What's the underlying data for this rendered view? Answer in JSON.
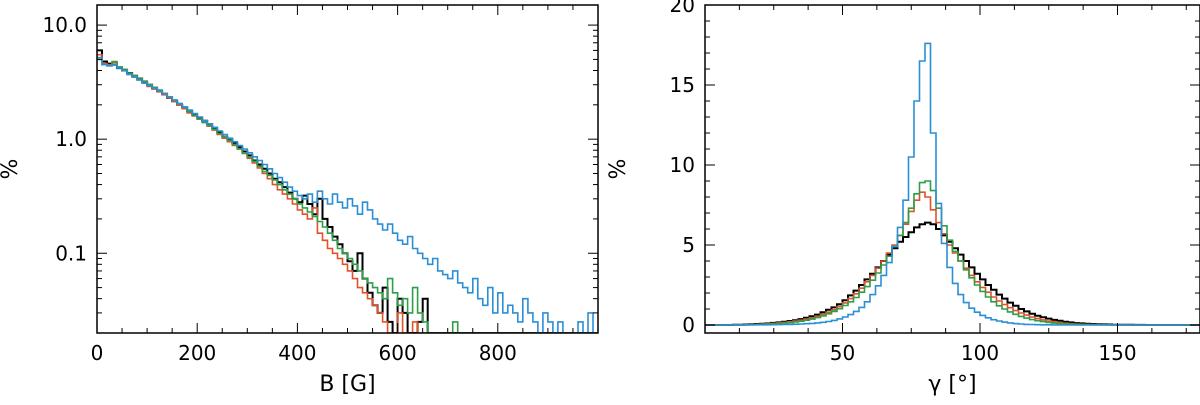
{
  "chart_data": [
    {
      "type": "histogram",
      "xlabel": "B [G]",
      "ylabel": "%",
      "xlim": [
        0,
        1000
      ],
      "ylim": [
        0.02,
        15
      ],
      "yscale": "log",
      "xticks": [
        0,
        200,
        400,
        600,
        800
      ],
      "xtick_labels": [
        "0",
        "200",
        "400",
        "600",
        "800"
      ],
      "yticks": [
        0.1,
        1.0,
        10.0
      ],
      "ytick_labels": [
        "0.1",
        "1.0",
        "10.0"
      ],
      "bin_width": 10,
      "grid": false,
      "series": [
        {
          "color": "#000000",
          "values": [
            6.0,
            4.8,
            4.6,
            4.5,
            4.2,
            4.0,
            3.8,
            3.6,
            3.4,
            3.2,
            3.0,
            2.8,
            2.65,
            2.5,
            2.3,
            2.15,
            2.0,
            1.9,
            1.75,
            1.65,
            1.55,
            1.45,
            1.35,
            1.25,
            1.15,
            1.05,
            1.0,
            0.92,
            0.85,
            0.78,
            0.72,
            0.65,
            0.6,
            0.55,
            0.5,
            0.45,
            0.42,
            0.38,
            0.34,
            0.3,
            0.28,
            0.32,
            0.27,
            0.22,
            0.3,
            0.2,
            0.17,
            0.14,
            0.12,
            0.1,
            0.085,
            0.07,
            0.1,
            0.06,
            0.045,
            0.035,
            0.03,
            0.05,
            0.025,
            0.02,
            0.04,
            0.03,
            0.02,
            0.02,
            0.025,
            0.04,
            0.02,
            0.02,
            0.02,
            0.02,
            0.02,
            0.02,
            0.02,
            0.02,
            0.02,
            0.02,
            0.02,
            0.02,
            0.02,
            0.02,
            0.02,
            0.02,
            0.02,
            0.02,
            0.02,
            0.02,
            0.02,
            0.02,
            0.02,
            0.02,
            0.02,
            0.02,
            0.02,
            0.02,
            0.02,
            0.02,
            0.02,
            0.02,
            0.02,
            0.02
          ]
        },
        {
          "color": "#e0532a",
          "values": [
            5.5,
            4.6,
            4.5,
            4.7,
            4.3,
            4.0,
            3.7,
            3.5,
            3.3,
            3.1,
            2.9,
            2.75,
            2.6,
            2.45,
            2.3,
            2.15,
            2.0,
            1.85,
            1.7,
            1.6,
            1.5,
            1.4,
            1.3,
            1.2,
            1.1,
            1.02,
            0.95,
            0.88,
            0.82,
            0.75,
            0.68,
            0.62,
            0.56,
            0.5,
            0.45,
            0.4,
            0.36,
            0.33,
            0.3,
            0.27,
            0.24,
            0.22,
            0.2,
            0.25,
            0.15,
            0.13,
            0.11,
            0.1,
            0.09,
            0.08,
            0.07,
            0.06,
            0.05,
            0.045,
            0.04,
            0.035,
            0.03,
            0.025,
            0.02,
            0.02,
            0.03,
            0.02,
            0.02,
            0.025,
            0.02,
            0.02,
            0.02,
            0.02,
            0.02,
            0.02,
            0.02,
            0.02,
            0.02,
            0.02,
            0.02,
            0.02,
            0.02,
            0.02,
            0.02,
            0.02,
            0.02,
            0.02,
            0.02,
            0.02,
            0.02,
            0.02,
            0.02,
            0.02,
            0.02,
            0.02,
            0.02,
            0.02,
            0.02,
            0.02,
            0.02,
            0.02,
            0.02,
            0.02,
            0.02,
            0.02
          ]
        },
        {
          "color": "#2e9e48",
          "values": [
            5.0,
            4.5,
            4.4,
            4.8,
            4.3,
            4.1,
            3.8,
            3.6,
            3.4,
            3.2,
            3.0,
            2.85,
            2.7,
            2.5,
            2.35,
            2.2,
            2.05,
            1.9,
            1.75,
            1.62,
            1.5,
            1.4,
            1.32,
            1.22,
            1.12,
            1.05,
            0.98,
            0.9,
            0.82,
            0.76,
            0.7,
            0.64,
            0.58,
            0.52,
            0.48,
            0.44,
            0.4,
            0.36,
            0.33,
            0.3,
            0.27,
            0.25,
            0.23,
            0.21,
            0.19,
            0.17,
            0.15,
            0.13,
            0.11,
            0.1,
            0.09,
            0.08,
            0.07,
            0.06,
            0.055,
            0.05,
            0.045,
            0.04,
            0.06,
            0.045,
            0.035,
            0.04,
            0.03,
            0.05,
            0.03,
            0.025,
            0.02,
            0.02,
            0.02,
            0.02,
            0.02,
            0.025,
            0.02,
            0.02,
            0.02,
            0.02,
            0.02,
            0.02,
            0.02,
            0.02,
            0.02,
            0.02,
            0.02,
            0.02,
            0.02,
            0.02,
            0.02,
            0.02,
            0.02,
            0.02,
            0.02,
            0.02,
            0.02,
            0.02,
            0.02,
            0.02,
            0.02,
            0.02,
            0.02,
            0.02
          ]
        },
        {
          "color": "#2b8fd6",
          "values": [
            5.2,
            4.5,
            4.4,
            4.5,
            4.2,
            4.0,
            3.7,
            3.5,
            3.3,
            3.1,
            2.95,
            2.8,
            2.65,
            2.5,
            2.35,
            2.2,
            2.05,
            1.92,
            1.8,
            1.68,
            1.56,
            1.45,
            1.36,
            1.27,
            1.18,
            1.1,
            1.02,
            0.95,
            0.88,
            0.82,
            0.76,
            0.7,
            0.65,
            0.6,
            0.55,
            0.5,
            0.46,
            0.42,
            0.38,
            0.35,
            0.32,
            0.3,
            0.33,
            0.28,
            0.35,
            0.3,
            0.27,
            0.33,
            0.28,
            0.25,
            0.3,
            0.26,
            0.22,
            0.28,
            0.24,
            0.2,
            0.18,
            0.16,
            0.18,
            0.15,
            0.13,
            0.12,
            0.14,
            0.11,
            0.1,
            0.09,
            0.08,
            0.09,
            0.07,
            0.065,
            0.06,
            0.07,
            0.055,
            0.05,
            0.045,
            0.06,
            0.04,
            0.035,
            0.05,
            0.03,
            0.045,
            0.03,
            0.035,
            0.03,
            0.025,
            0.04,
            0.03,
            0.025,
            0.02,
            0.03,
            0.025,
            0.02,
            0.025,
            0.02,
            0.02,
            0.02,
            0.025,
            0.02,
            0.03,
            0.02
          ]
        }
      ]
    },
    {
      "type": "histogram",
      "xlabel": "γ [°]",
      "ylabel": "%",
      "xlim": [
        0,
        180
      ],
      "ylim": [
        -0.5,
        20
      ],
      "yscale": "linear",
      "xticks": [
        50,
        100,
        150
      ],
      "xtick_labels": [
        "50",
        "100",
        "150"
      ],
      "yticks": [
        0,
        5,
        10,
        15,
        20
      ],
      "ytick_labels": [
        "0",
        "5",
        "10",
        "15",
        "20"
      ],
      "bin_width": 2,
      "bin_start": 0,
      "grid": false,
      "series": [
        {
          "color": "#000000",
          "values": [
            0,
            0,
            0,
            0,
            0,
            0.01,
            0.02,
            0.03,
            0.05,
            0.06,
            0.08,
            0.1,
            0.13,
            0.16,
            0.2,
            0.25,
            0.3,
            0.37,
            0.45,
            0.55,
            0.65,
            0.8,
            0.95,
            1.1,
            1.3,
            1.55,
            1.85,
            2.15,
            2.5,
            2.85,
            3.2,
            3.6,
            4.0,
            4.4,
            4.8,
            5.2,
            5.5,
            5.8,
            6.1,
            6.3,
            6.4,
            6.3,
            6.0,
            5.6,
            5.2,
            4.8,
            4.4,
            4.0,
            3.6,
            3.2,
            2.85,
            2.5,
            2.2,
            1.9,
            1.65,
            1.4,
            1.2,
            1.0,
            0.85,
            0.7,
            0.58,
            0.48,
            0.4,
            0.32,
            0.26,
            0.2,
            0.16,
            0.12,
            0.1,
            0.08,
            0.06,
            0.05,
            0.04,
            0.03,
            0.02,
            0.015,
            0.01,
            0.01,
            0.005,
            0.005,
            0,
            0,
            0,
            0,
            0,
            0,
            0,
            0,
            0,
            0
          ]
        },
        {
          "color": "#e0532a",
          "values": [
            0,
            0,
            0,
            0,
            0,
            0.01,
            0.015,
            0.02,
            0.03,
            0.04,
            0.06,
            0.08,
            0.1,
            0.13,
            0.16,
            0.2,
            0.25,
            0.3,
            0.37,
            0.45,
            0.55,
            0.67,
            0.8,
            0.95,
            1.15,
            1.38,
            1.65,
            1.95,
            2.3,
            2.7,
            3.1,
            3.55,
            4.0,
            4.5,
            5.0,
            5.6,
            6.3,
            7.1,
            7.8,
            8.3,
            8.0,
            7.2,
            6.4,
            5.7,
            5.0,
            4.5,
            4.0,
            3.55,
            3.1,
            2.7,
            2.35,
            2.05,
            1.75,
            1.5,
            1.28,
            1.08,
            0.9,
            0.75,
            0.62,
            0.5,
            0.4,
            0.32,
            0.25,
            0.2,
            0.15,
            0.11,
            0.08,
            0.06,
            0.045,
            0.035,
            0.025,
            0.02,
            0.015,
            0.01,
            0.01,
            0.005,
            0.005,
            0,
            0,
            0,
            0,
            0,
            0,
            0,
            0,
            0,
            0,
            0,
            0,
            0
          ]
        },
        {
          "color": "#2e9e48",
          "values": [
            0,
            0,
            0,
            0,
            0,
            0.005,
            0.01,
            0.015,
            0.02,
            0.03,
            0.04,
            0.055,
            0.07,
            0.09,
            0.12,
            0.15,
            0.19,
            0.24,
            0.3,
            0.37,
            0.46,
            0.57,
            0.7,
            0.85,
            1.02,
            1.22,
            1.45,
            1.72,
            2.05,
            2.4,
            2.8,
            3.25,
            3.75,
            4.3,
            4.9,
            5.6,
            6.4,
            7.3,
            8.2,
            8.9,
            9.0,
            8.4,
            7.3,
            6.2,
            5.3,
            4.6,
            4.0,
            3.45,
            2.95,
            2.5,
            2.1,
            1.75,
            1.45,
            1.2,
            1.0,
            0.82,
            0.67,
            0.54,
            0.43,
            0.34,
            0.27,
            0.21,
            0.16,
            0.12,
            0.09,
            0.07,
            0.05,
            0.04,
            0.03,
            0.02,
            0.015,
            0.01,
            0.01,
            0.005,
            0,
            0,
            0,
            0,
            0,
            0,
            0,
            0,
            0,
            0,
            0,
            0,
            0,
            0,
            0,
            0
          ]
        },
        {
          "color": "#2b8fd6",
          "values": [
            0,
            0,
            0,
            0,
            0,
            0,
            0,
            0.005,
            0.005,
            0.01,
            0.01,
            0.015,
            0.02,
            0.025,
            0.03,
            0.04,
            0.05,
            0.06,
            0.08,
            0.1,
            0.13,
            0.17,
            0.22,
            0.29,
            0.38,
            0.5,
            0.65,
            0.85,
            1.1,
            1.45,
            1.9,
            2.45,
            3.1,
            3.9,
            4.9,
            6.1,
            7.8,
            10.5,
            14.0,
            16.5,
            17.6,
            12.0,
            7.6,
            5.1,
            3.6,
            2.6,
            1.9,
            1.4,
            1.05,
            0.8,
            0.6,
            0.45,
            0.33,
            0.25,
            0.18,
            0.13,
            0.09,
            0.06,
            0.04,
            0.03,
            0.02,
            0.015,
            0.01,
            0.005,
            0.005,
            0,
            0,
            0,
            0,
            0,
            0,
            0,
            0,
            0,
            0,
            0,
            0,
            0,
            0,
            0,
            0,
            0,
            0,
            0,
            0,
            0,
            0,
            0,
            0,
            0
          ]
        }
      ]
    }
  ]
}
